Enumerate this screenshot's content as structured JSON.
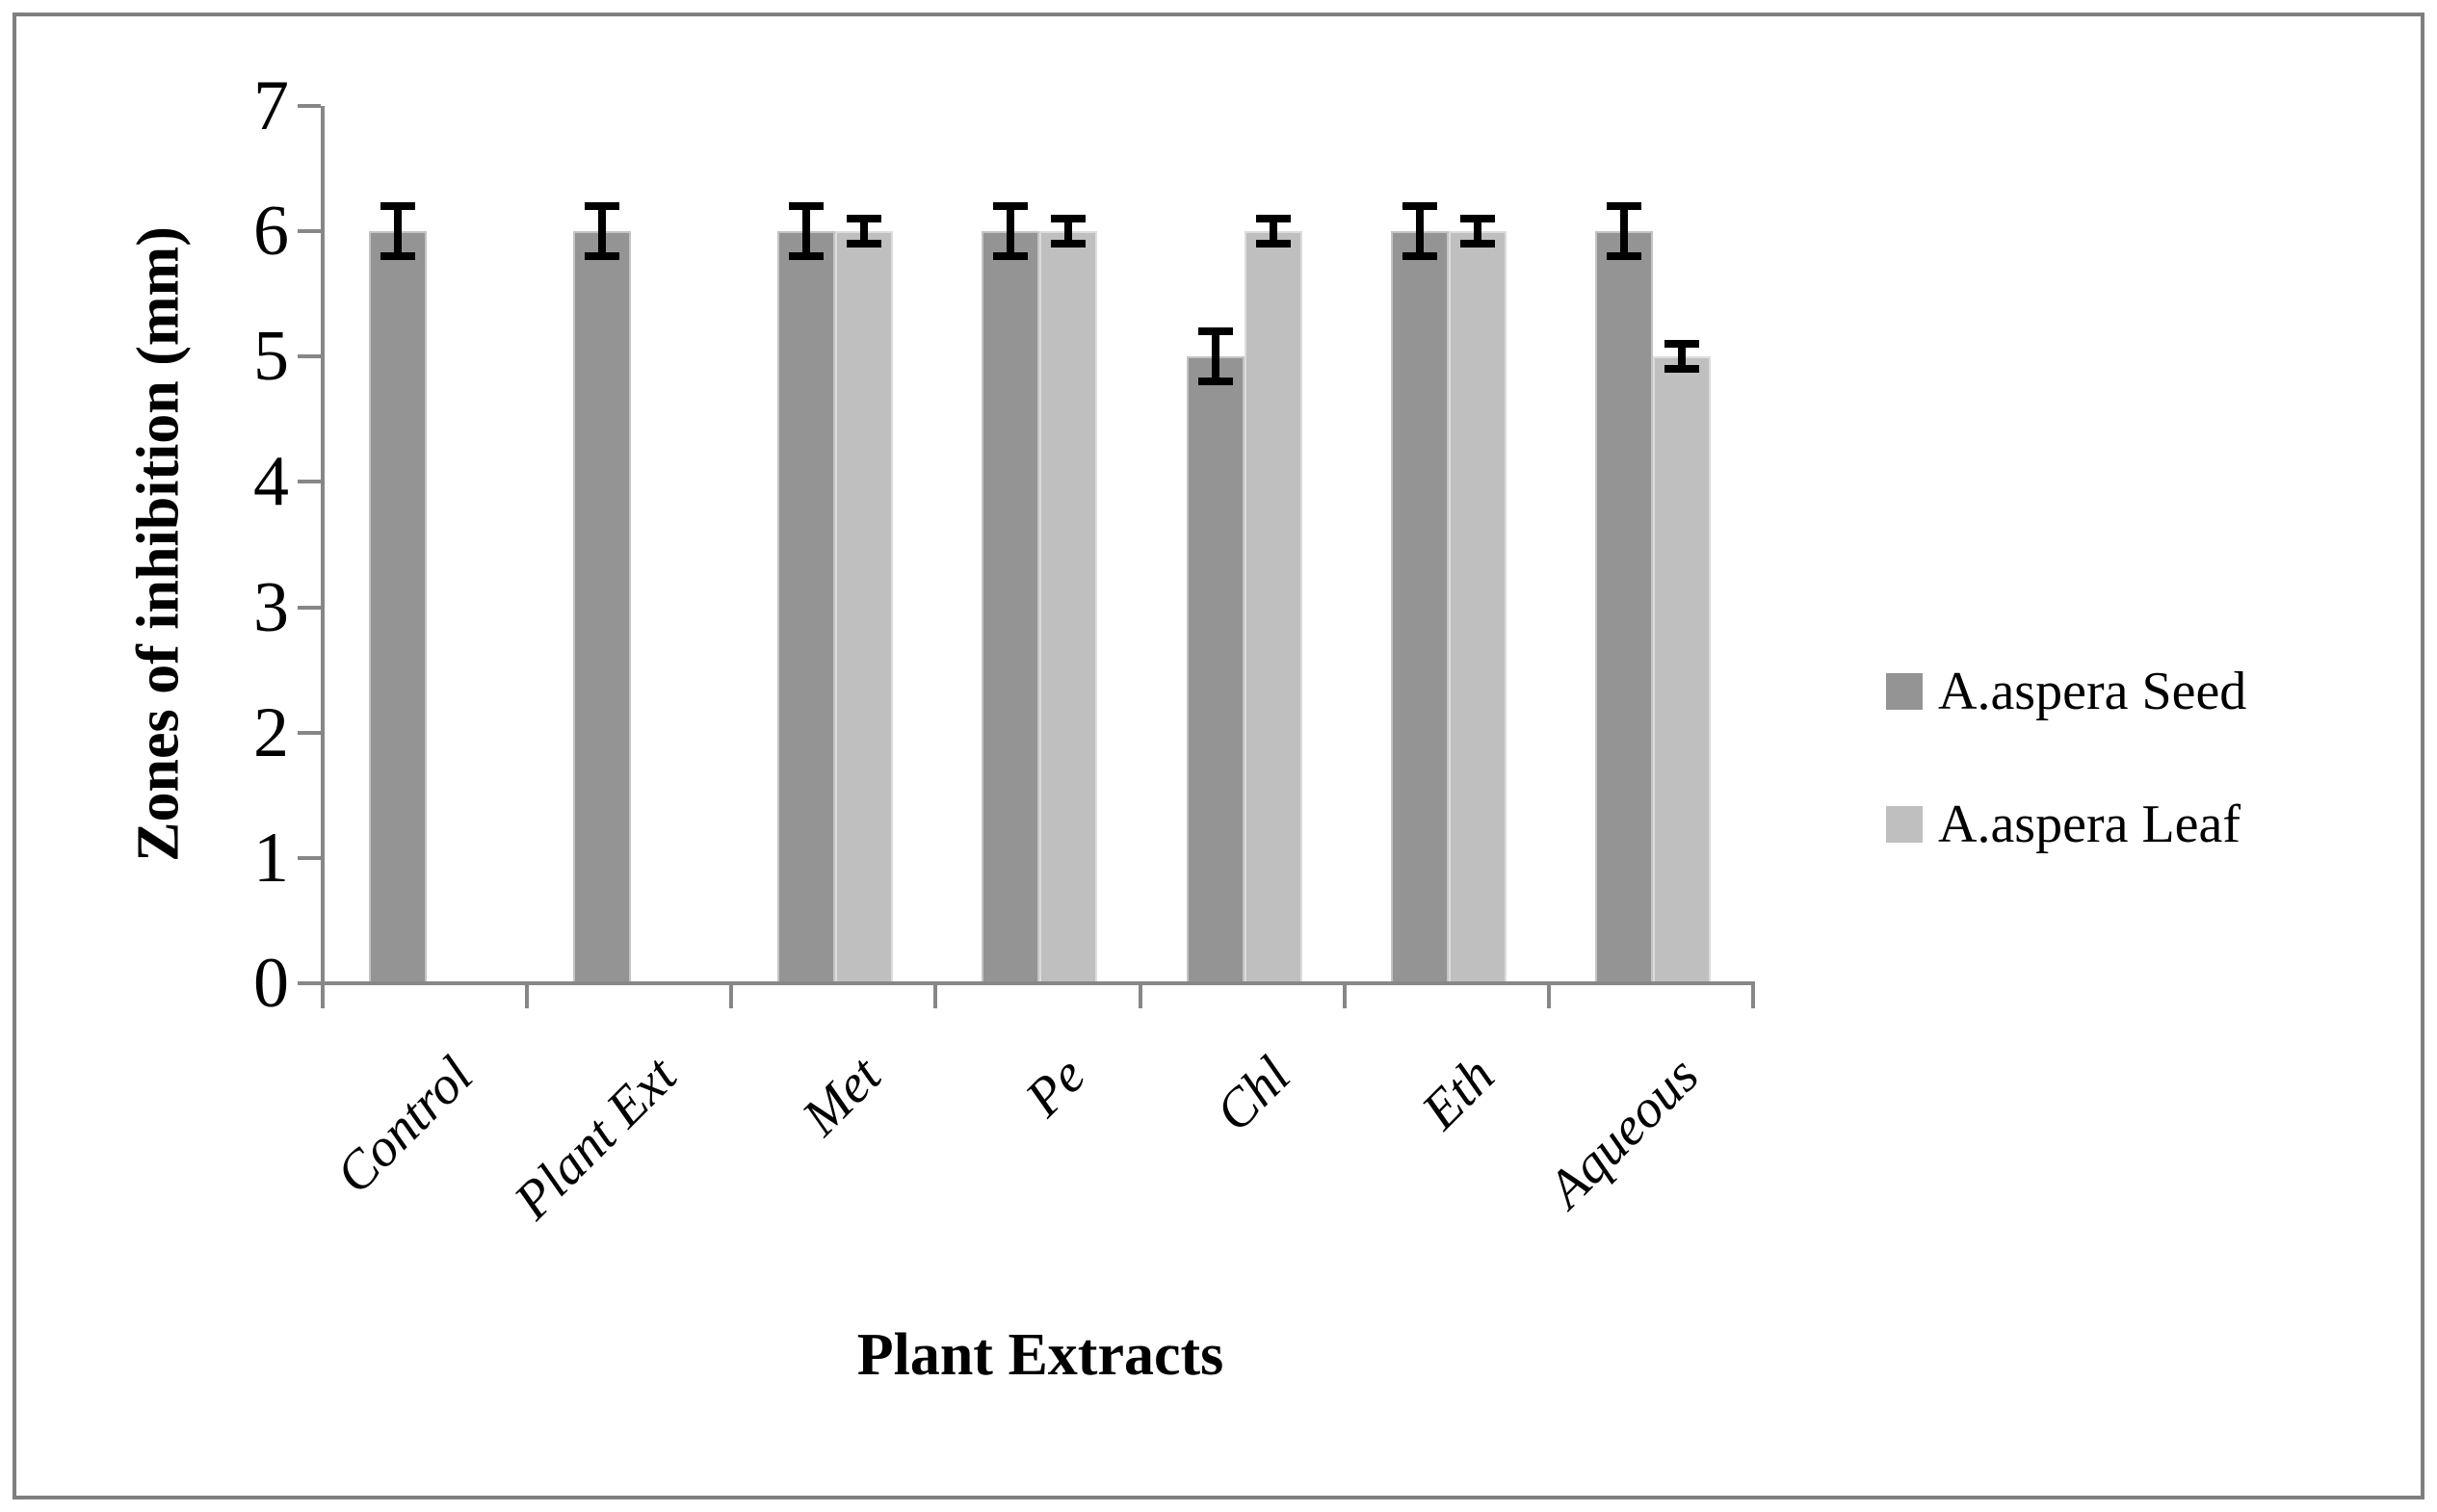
{
  "chart_data": {
    "type": "bar",
    "title": "",
    "xlabel": "Plant Extracts",
    "ylabel": "Zones of inhibition (mm)",
    "ylim": [
      0,
      7
    ],
    "yticks": [
      0,
      1,
      2,
      3,
      4,
      5,
      6,
      7
    ],
    "categories": [
      "Control",
      "Plant Ext",
      "Met",
      "Pe",
      "Chl",
      "Eth",
      "Aqueous"
    ],
    "series": [
      {
        "name": "A.aspera Seed",
        "color": "#949494",
        "values": [
          6,
          6,
          6,
          6,
          5,
          6,
          6
        ],
        "errors": [
          0.2,
          0.2,
          0.2,
          0.2,
          0.2,
          0.2,
          0.2
        ]
      },
      {
        "name": "A.aspera Leaf",
        "color": "#BFBFBF",
        "values": [
          null,
          null,
          6,
          6,
          6,
          6,
          5
        ],
        "errors": [
          null,
          null,
          0.1,
          0.1,
          0.1,
          0.1,
          0.1
        ]
      }
    ],
    "legend_position": "right",
    "grid": false,
    "error_bar_color": "#000000",
    "axis_color": "#878787",
    "frame_color": "#7f7f7f"
  }
}
